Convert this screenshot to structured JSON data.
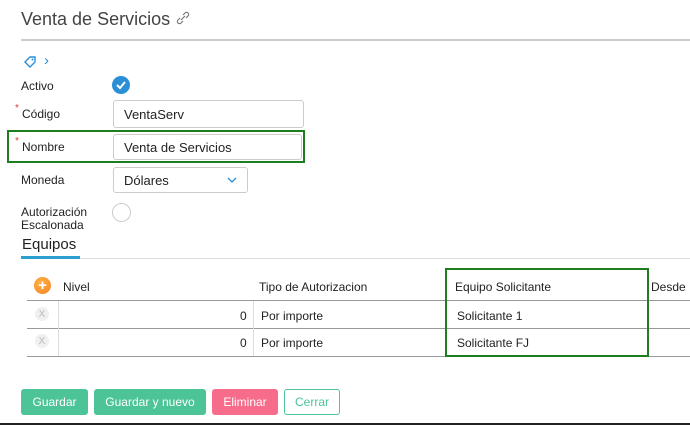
{
  "header": {
    "title": "Venta de Servicios",
    "link_icon": "link-icon"
  },
  "breadcrumb": {
    "tag_icon": "tag-icon",
    "chevron": "›"
  },
  "form": {
    "activo_label": "Activo",
    "activo_checked": true,
    "codigo_label": "Código",
    "codigo_value": "VentaServ",
    "required_mark": "*",
    "nombre_label": "Nombre",
    "nombre_value": "Venta de Servicios",
    "moneda_label": "Moneda",
    "moneda_value": "Dólares",
    "autorizacion_label_1": "Autorización",
    "autorizacion_label_2": "Escalonada",
    "autorizacion_checked": false
  },
  "tabs": [
    {
      "label": "Equipos",
      "active": true
    }
  ],
  "table": {
    "columns": [
      "Nivel",
      "Tipo de Autorizacion",
      "Equipo Solicitante",
      "Desde"
    ],
    "rows": [
      {
        "nivel": "0",
        "tipo": "Por importe",
        "equipo": "Solicitante 1"
      },
      {
        "nivel": "0",
        "tipo": "Por importe",
        "equipo": "Solicitante FJ"
      }
    ],
    "delete_glyph": "X"
  },
  "buttons": {
    "save": "Guardar",
    "save_new": "Guardar y nuevo",
    "delete": "Eliminar",
    "close": "Cerrar"
  },
  "colors": {
    "accent": "#2a8fd6",
    "success": "#4cc497",
    "danger": "#f86c8b",
    "highlight": "#1e7d1e",
    "add": "#f5901e"
  }
}
